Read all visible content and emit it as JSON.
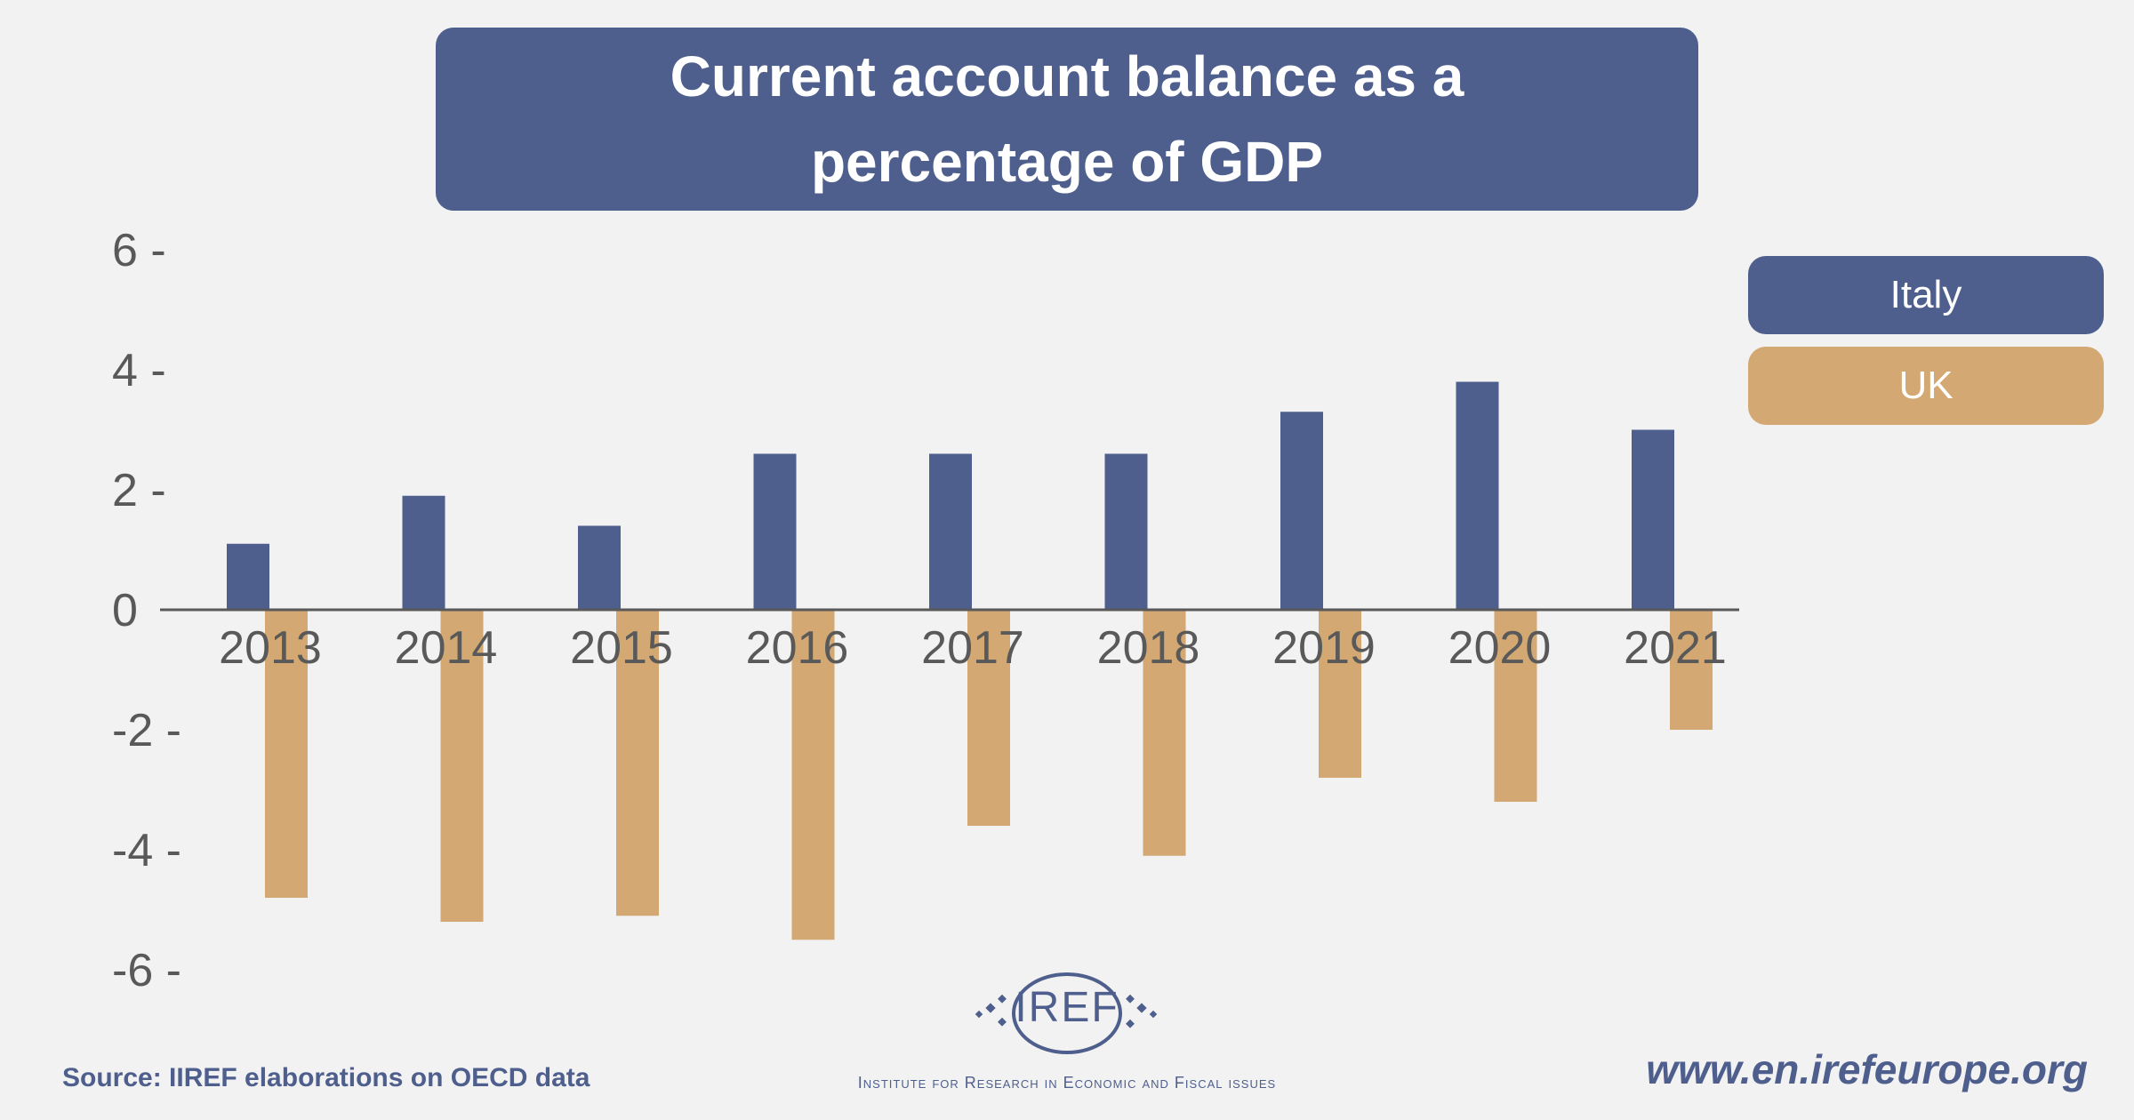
{
  "header": {
    "title_line1": "Current account balance as a",
    "title_line2": "percentage of GDP"
  },
  "legend": {
    "italy": "Italy",
    "uk": "UK"
  },
  "footer": {
    "source": "Source: IIREF elaborations on OECD data",
    "url": "www.en.irefeurope.org",
    "logo_text": "IREF",
    "institute": "Institute for Research in Economic and Fiscal issues"
  },
  "colors": {
    "italy": "#4e5f8d",
    "uk": "#d3a873",
    "axis": "#595959",
    "background": "#f2f2f2"
  },
  "chart_data": {
    "type": "bar",
    "title": "Current account balance as a percentage of GDP",
    "categories": [
      "2013",
      "2014",
      "2015",
      "2016",
      "2017",
      "2018",
      "2019",
      "2020",
      "2021"
    ],
    "series": [
      {
        "name": "Italy",
        "values": [
          1.1,
          1.9,
          1.4,
          2.6,
          2.6,
          2.6,
          3.3,
          3.8,
          3.0
        ]
      },
      {
        "name": "UK",
        "values": [
          -4.8,
          -5.2,
          -5.1,
          -5.5,
          -3.6,
          -4.1,
          -2.8,
          -3.2,
          -2.0
        ]
      }
    ],
    "yticks": [
      "6 -",
      "4 -",
      "2 -",
      "0",
      "-2 -",
      "-4 -",
      "-6 -"
    ],
    "ytick_values": [
      6,
      4,
      2,
      0,
      -2,
      -4,
      -6
    ],
    "ylim": [
      -6,
      6
    ],
    "xlabel": "",
    "ylabel": "",
    "grid": false,
    "legend_position": "right"
  }
}
